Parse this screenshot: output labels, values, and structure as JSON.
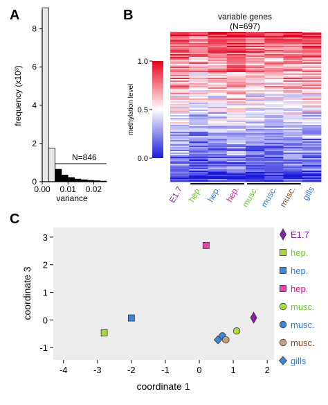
{
  "panel_labels": {
    "a": "A",
    "b": "B",
    "c": "C"
  },
  "chart_data": [
    {
      "type": "bar",
      "panel": "A",
      "xlabel": "variance",
      "ylabel": "frequency (x10³)",
      "xticks": [
        "0.00",
        "0.01",
        "0.02"
      ],
      "yticks": [
        "0",
        "2",
        "4",
        "6",
        "8"
      ],
      "xlim": [
        0,
        0.025
      ],
      "ylim": [
        0,
        9
      ],
      "bin_width": 0.0025,
      "values": [
        9.1,
        1.75,
        0.65,
        0.35,
        0.22,
        0.14,
        0.1,
        0.07,
        0.05,
        0.03
      ],
      "threshold": 0.005,
      "annotation": "N=846",
      "colors": {
        "below": "#e6e6e6",
        "above": "#000000"
      }
    },
    {
      "type": "heatmap",
      "panel": "B",
      "title": "variable genes",
      "subtitle": "(N=697)",
      "colorbar_label": "methylation level",
      "colorbar_ticks": [
        "1.0",
        "0.5",
        "0.0"
      ],
      "colorscale": {
        "low": "#1a1adc",
        "mid": "#ffffff",
        "high": "#e8001c"
      },
      "columns": [
        {
          "label": "E1.7",
          "color": "#8b1fa8"
        },
        {
          "label": "hep.",
          "color": "#66cc22"
        },
        {
          "label": "hep.",
          "color": "#2e7bd6"
        },
        {
          "label": "hep.",
          "color": "#e0109b"
        },
        {
          "label": "musc.",
          "color": "#66cc22"
        },
        {
          "label": "musc.",
          "color": "#2e7bd6"
        },
        {
          "label": "musc.",
          "color": "#8a4a1a"
        },
        {
          "label": "gills",
          "color": "#2e7bd6"
        }
      ],
      "group_brackets": [
        [
          1,
          3
        ],
        [
          4,
          6
        ]
      ]
    },
    {
      "type": "scatter",
      "panel": "C",
      "xlabel": "coordinate 1",
      "ylabel": "coordinate 3",
      "xticks": [
        "-4",
        "-3",
        "-2",
        "-1",
        "0",
        "1",
        "2"
      ],
      "yticks": [
        "-1",
        "0",
        "1",
        "2",
        "3"
      ],
      "xlim": [
        -4.3,
        2.2
      ],
      "ylim": [
        -1.45,
        3.35
      ],
      "points": [
        {
          "label": "E1.7",
          "x": 1.6,
          "y": 0.08,
          "shape": "diamond-tall",
          "color": "#8b1fa8"
        },
        {
          "label": "hep.",
          "x": -2.8,
          "y": -0.47,
          "shape": "square",
          "color": "#a5d83a"
        },
        {
          "label": "hep.",
          "x": -2.0,
          "y": 0.07,
          "shape": "square",
          "color": "#3d86e0"
        },
        {
          "label": "hep.",
          "x": 0.2,
          "y": 2.7,
          "shape": "square",
          "color": "#ec3fb0"
        },
        {
          "label": "musc.",
          "x": 1.1,
          "y": -0.4,
          "shape": "circle",
          "color": "#a5e03a"
        },
        {
          "label": "musc.",
          "x": 0.68,
          "y": -0.58,
          "shape": "circle",
          "color": "#3d86e0"
        },
        {
          "label": "musc.",
          "x": 0.78,
          "y": -0.72,
          "shape": "circle",
          "color": "#c9a07a"
        },
        {
          "label": "gills",
          "x": 0.55,
          "y": -0.72,
          "shape": "diamond",
          "color": "#3d86e0"
        }
      ],
      "legend": [
        {
          "label": "E1.7",
          "shape": "diamond-tall",
          "color": "#8b1fa8",
          "text_color": "#8b1fa8"
        },
        {
          "label": "hep.",
          "shape": "square",
          "color": "#a5d83a",
          "text_color": "#66cc22"
        },
        {
          "label": "hep.",
          "shape": "square",
          "color": "#3d86e0",
          "text_color": "#2e7bd6"
        },
        {
          "label": "hep.",
          "shape": "square",
          "color": "#ec3fb0",
          "text_color": "#e0109b"
        },
        {
          "label": "musc.",
          "shape": "circle",
          "color": "#a5e03a",
          "text_color": "#66cc22"
        },
        {
          "label": "musc.",
          "shape": "circle",
          "color": "#3d86e0",
          "text_color": "#2e7bd6"
        },
        {
          "label": "musc.",
          "shape": "circle",
          "color": "#c9a07a",
          "text_color": "#8a4a1a"
        },
        {
          "label": "gills",
          "shape": "diamond",
          "color": "#3d86e0",
          "text_color": "#2e7bd6"
        }
      ],
      "legend_placement": "right",
      "plot_background": "#ececec"
    }
  ]
}
